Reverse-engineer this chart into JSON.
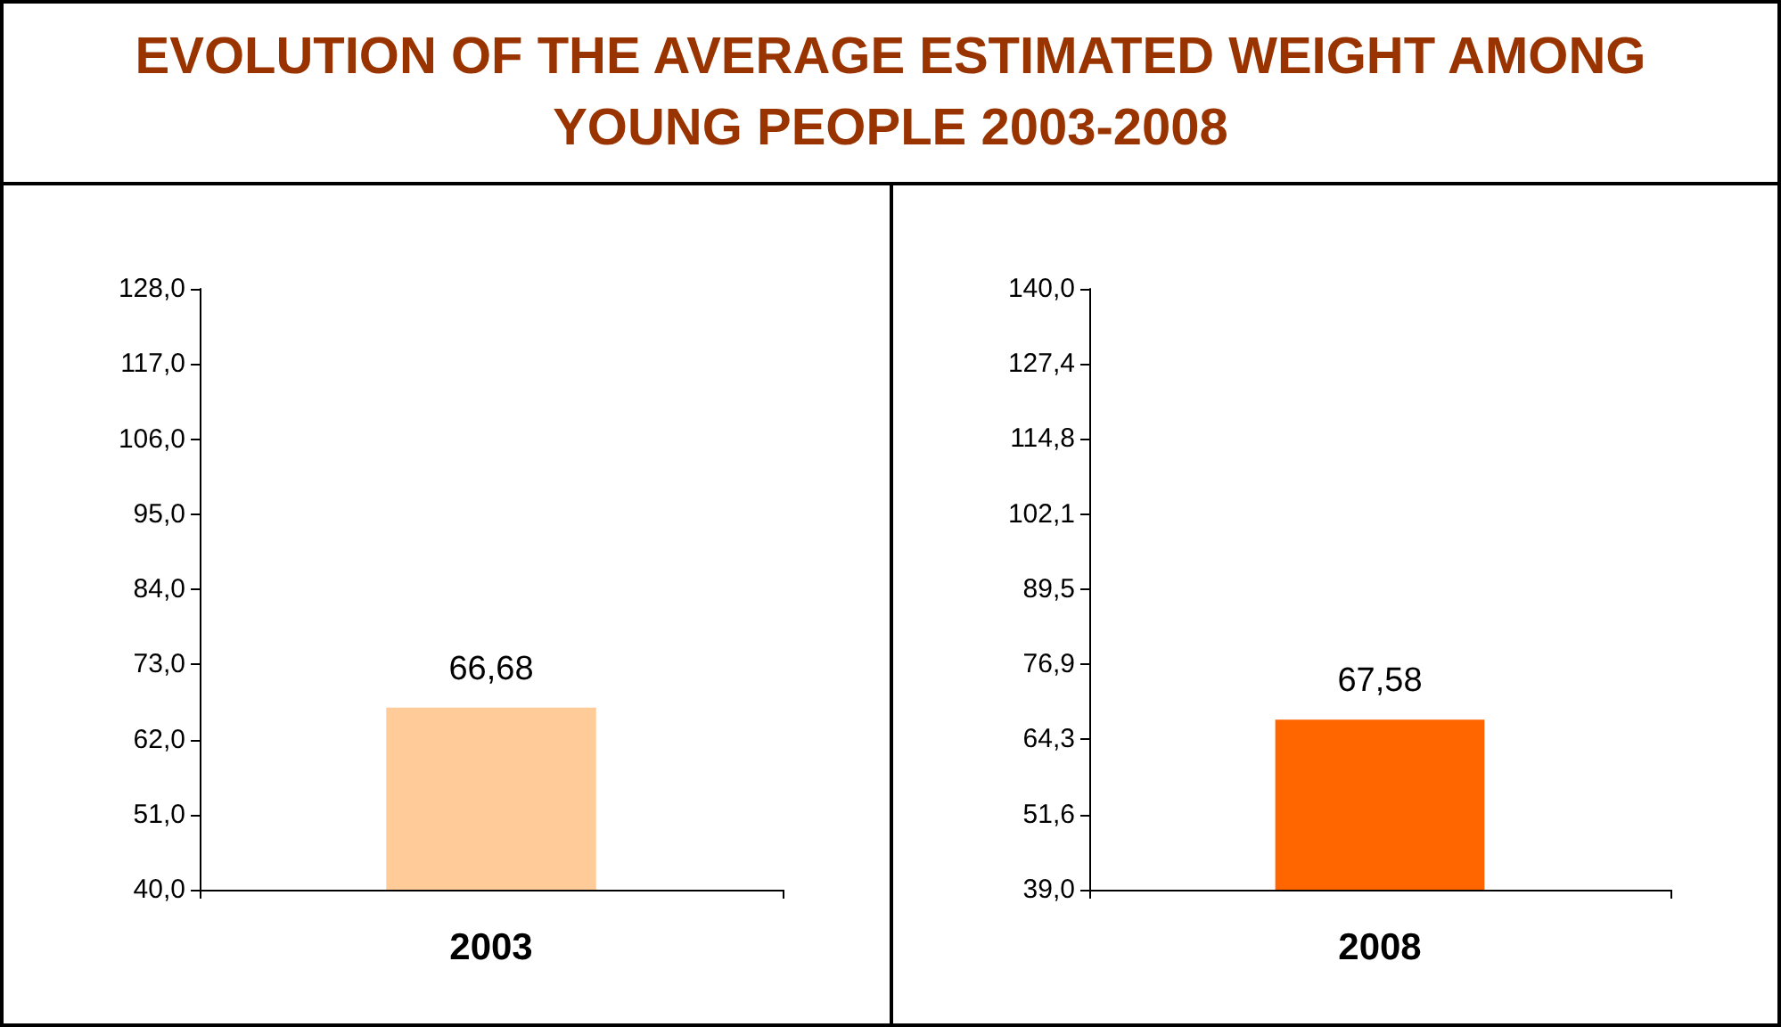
{
  "chart_data": [
    {
      "type": "bar",
      "title": "EVOLUTION OF THE AVERAGE ESTIMATED WEIGHT AMONG YOUNG PEOPLE 2003-2008",
      "categories": [
        "2003"
      ],
      "values": [
        66.68
      ],
      "value_labels": [
        "66,68"
      ],
      "color": "#ffcc99",
      "ylim": [
        40,
        128
      ],
      "yticks": [
        {
          "value": 40,
          "label": "40,0"
        },
        {
          "value": 51,
          "label": "51,0"
        },
        {
          "value": 62,
          "label": "62,0"
        },
        {
          "value": 73,
          "label": "73,0"
        },
        {
          "value": 84,
          "label": "84,0"
        },
        {
          "value": 95,
          "label": "95,0"
        },
        {
          "value": 106,
          "label": "106,0"
        },
        {
          "value": 117,
          "label": "117,0"
        },
        {
          "value": 128,
          "label": "128,0"
        }
      ],
      "grid": false
    },
    {
      "type": "bar",
      "categories": [
        "2008"
      ],
      "values": [
        67.58
      ],
      "value_labels": [
        "67,58"
      ],
      "color": "#ff6600",
      "ylim": [
        39,
        140
      ],
      "yticks": [
        {
          "value": 39,
          "label": "39,0"
        },
        {
          "value": 51.6,
          "label": "51,6"
        },
        {
          "value": 64.3,
          "label": "64,3"
        },
        {
          "value": 76.9,
          "label": "76,9"
        },
        {
          "value": 89.5,
          "label": "89,5"
        },
        {
          "value": 102.1,
          "label": "102,1"
        },
        {
          "value": 114.8,
          "label": "114,8"
        },
        {
          "value": 127.4,
          "label": "127,4"
        },
        {
          "value": 140,
          "label": "140,0"
        }
      ],
      "grid": false
    }
  ]
}
